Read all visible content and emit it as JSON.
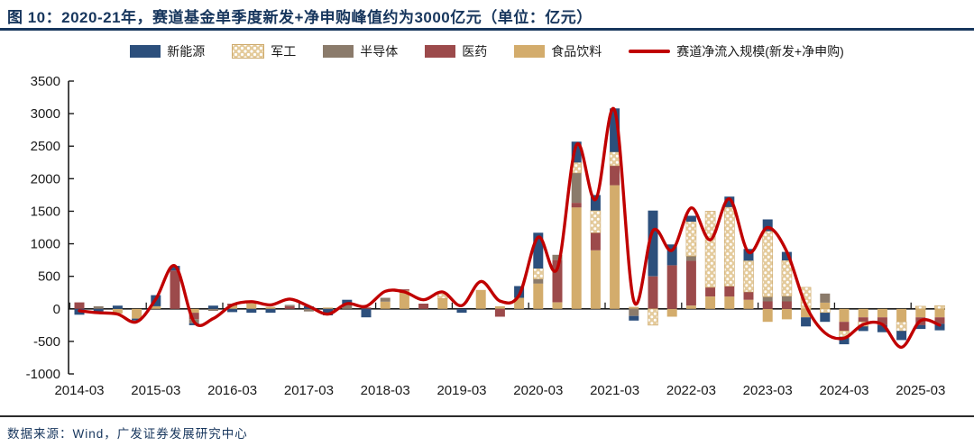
{
  "header": {
    "title": "图 10：2020-21年，赛道基金单季度新发+净申购峰值约为3000亿元（单位：亿元）"
  },
  "footer": {
    "source": "数据来源：Wind，广发证券发展研究中心"
  },
  "colors": {
    "title_navy": "#17365D",
    "new_energy_blue": "#2C4F7C",
    "military_tan": "#E4CB9C",
    "military_border": "#CDA96B",
    "semiconductor_brown": "#8B7B6B",
    "pharma_maroon": "#9C4A4B",
    "food_gold": "#D3AC6C",
    "line_red": "#C00000",
    "axis_black": "#1a1a1a"
  },
  "chart_data": {
    "type": "bar",
    "stacked": true,
    "grid": false,
    "legend_position": "top",
    "title": "图 10：2020-21年，赛道基金单季度新发+净申购峰值约为3000亿元（单位：亿元）",
    "xlabel": "",
    "ylabel": "",
    "unit": "亿元",
    "ylim": [
      -1000,
      3500
    ],
    "ytick_step": 500,
    "yticks": [
      3500,
      3000,
      2500,
      2000,
      1500,
      1000,
      500,
      0,
      -500,
      -1000
    ],
    "xtick_every": 4,
    "xtick_labels": [
      "2014-03",
      "2015-03",
      "2016-03",
      "2017-03",
      "2018-03",
      "2019-03",
      "2020-03",
      "2021-03",
      "2022-03",
      "2023-03",
      "2024-03",
      "2025-03"
    ],
    "stack_order_bottom_to_top": [
      "食品饮料",
      "医药",
      "半导体",
      "军工",
      "新能源"
    ],
    "categories": [
      "2014-03",
      "2014-06",
      "2014-09",
      "2014-12",
      "2015-03",
      "2015-06",
      "2015-09",
      "2015-12",
      "2016-03",
      "2016-06",
      "2016-09",
      "2016-12",
      "2017-03",
      "2017-06",
      "2017-09",
      "2017-12",
      "2018-03",
      "2018-06",
      "2018-09",
      "2018-12",
      "2019-03",
      "2019-06",
      "2019-09",
      "2019-12",
      "2020-03",
      "2020-06",
      "2020-09",
      "2020-12",
      "2021-03",
      "2021-06",
      "2021-09",
      "2021-12",
      "2022-03",
      "2022-06",
      "2022-09",
      "2022-12",
      "2023-03",
      "2023-06",
      "2023-09",
      "2023-12",
      "2024-03",
      "2024-06",
      "2024-09",
      "2024-12",
      "2025-03",
      "2025-06"
    ],
    "series": [
      {
        "name": "新能源",
        "type": "bar",
        "color": "#2C4F7C",
        "values": [
          -90,
          -40,
          50,
          -30,
          170,
          70,
          -30,
          50,
          -50,
          -60,
          -60,
          0,
          40,
          -100,
          70,
          -130,
          0,
          0,
          0,
          0,
          -60,
          0,
          0,
          180,
          550,
          0,
          320,
          240,
          670,
          -70,
          1010,
          320,
          90,
          0,
          160,
          180,
          180,
          130,
          -140,
          -140,
          -115,
          -70,
          -110,
          -140,
          -60,
          -100
        ]
      },
      {
        "name": "军工",
        "type": "bar",
        "color": "#E4CB9C",
        "pattern": "white-dots",
        "values": [
          0,
          0,
          0,
          0,
          0,
          0,
          0,
          0,
          0,
          30,
          0,
          0,
          0,
          0,
          0,
          0,
          0,
          0,
          0,
          70,
          0,
          0,
          0,
          0,
          160,
          0,
          160,
          340,
          210,
          0,
          -250,
          0,
          530,
          1170,
          1215,
          480,
          1010,
          550,
          330,
          -60,
          -90,
          -70,
          0,
          -140,
          40,
          50
        ]
      },
      {
        "name": "半导体",
        "type": "bar",
        "color": "#8B7B6B",
        "values": [
          0,
          40,
          0,
          0,
          0,
          0,
          -60,
          -30,
          0,
          0,
          0,
          20,
          -40,
          0,
          70,
          0,
          60,
          0,
          0,
          0,
          0,
          0,
          0,
          0,
          70,
          80,
          460,
          0,
          0,
          -110,
          0,
          0,
          70,
          0,
          0,
          0,
          70,
          80,
          0,
          140,
          0,
          0,
          0,
          0,
          0,
          0
        ]
      },
      {
        "name": "医药",
        "type": "bar",
        "color": "#9C4A4B",
        "values": [
          100,
          0,
          0,
          0,
          0,
          590,
          -100,
          0,
          30,
          0,
          0,
          40,
          0,
          0,
          0,
          20,
          0,
          20,
          80,
          0,
          0,
          0,
          -120,
          0,
          0,
          650,
          70,
          270,
          300,
          0,
          500,
          670,
          690,
          140,
          160,
          120,
          115,
          115,
          0,
          0,
          -140,
          -70,
          -120,
          0,
          -120,
          -100
        ]
      },
      {
        "name": "食品饮料",
        "type": "bar",
        "color": "#D3AC6C",
        "values": [
          0,
          0,
          -70,
          -150,
          40,
          0,
          -60,
          0,
          50,
          80,
          30,
          0,
          0,
          20,
          0,
          0,
          110,
          280,
          0,
          160,
          0,
          290,
          40,
          170,
          390,
          100,
          1560,
          900,
          1900,
          30,
          0,
          -120,
          50,
          190,
          190,
          140,
          -200,
          -160,
          -130,
          95,
          -200,
          -130,
          -130,
          -200,
          -130,
          -130
        ]
      },
      {
        "name": "赛道净流入规模(新发+净申购)",
        "type": "line",
        "color": "#C00000",
        "values": [
          -30,
          -60,
          -80,
          -200,
          150,
          660,
          -200,
          -150,
          60,
          110,
          60,
          150,
          40,
          -80,
          80,
          40,
          270,
          260,
          140,
          260,
          50,
          420,
          120,
          210,
          1100,
          620,
          2520,
          1680,
          3050,
          120,
          1200,
          900,
          1550,
          1060,
          1690,
          870,
          1250,
          880,
          50,
          -370,
          -450,
          -240,
          -240,
          -590,
          -180,
          -250
        ]
      }
    ]
  }
}
